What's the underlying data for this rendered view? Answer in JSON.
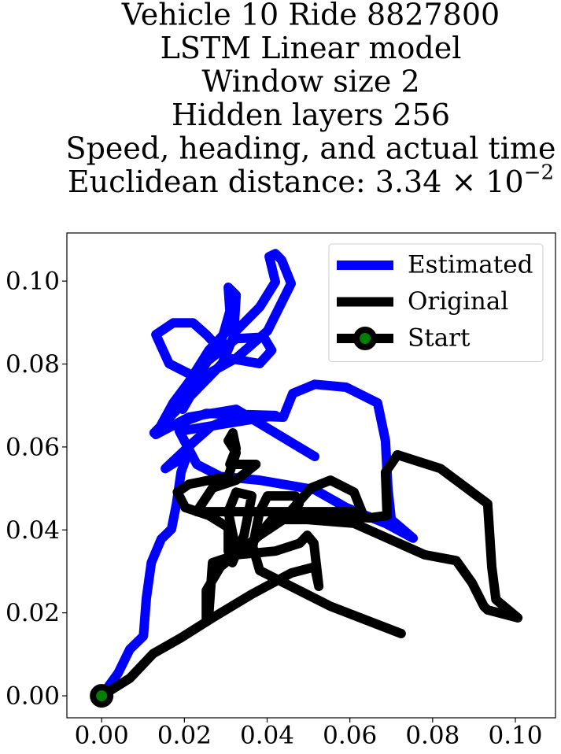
{
  "chart_data": {
    "type": "line",
    "title": [
      "Vehicle 10 Ride 8827800",
      "LSTM Linear model",
      "Window size 2",
      "Hidden layers 256",
      "Speed, heading, and actual time",
      "Euclidean distance: 3.34 × 10"
    ],
    "title_superscript": "−2",
    "xlim": [
      -0.0084,
      0.1097
    ],
    "ylim": [
      -0.0053,
      0.1116
    ],
    "xticks": [
      {
        "value": 0,
        "label": "0.00"
      },
      0.02,
      0.04,
      0.06,
      0.08,
      {
        "value": 0.1,
        "label": "0.10"
      }
    ],
    "yticks": [
      {
        "value": 0,
        "label": "0.00"
      },
      0.02,
      0.04,
      0.06,
      0.08,
      {
        "value": 0.1,
        "label": "0.10"
      }
    ],
    "legend": "upper right",
    "series": [
      {
        "name": "Estimated",
        "color": "#0000ff",
        "x": [
          0,
          0.004,
          0.0068,
          0.0101,
          0.0108,
          0.012,
          0.0144,
          0.0169,
          0.0181,
          0.0192,
          0.0207,
          0.0154,
          0.0221,
          0.0264,
          0.0325,
          0.0439,
          0.0462,
          0.0515,
          0.0591,
          0.0667,
          0.0686,
          0.0692,
          0.07,
          0.0753,
          0.0686,
          0.0591,
          0.0515,
          0.0382,
          0.0287,
          0.023,
          0.0188,
          0.042,
          0.0253,
          0.0127,
          0.0211,
          0.0291,
          0.0325,
          0.0382,
          0.042,
          0.0405,
          0.042,
          0.0435,
          0.0458,
          0.0401,
          0.0325,
          0.024,
          0.0196,
          0.0253,
          0.0325,
          0.0392,
          0.0411,
          0.0382,
          0.0306,
          0.0253,
          0.0221,
          0.0173,
          0.0131,
          0.0163,
          0.023,
          0.0291,
          0.031,
          0.0306,
          0.0325,
          0.0321,
          0.0259,
          0.0211,
          0.0173,
          0.0131,
          0.0211,
          0.0325,
          0.0515
        ],
        "y": [
          0,
          0.0055,
          0.0112,
          0.0144,
          0.0235,
          0.0321,
          0.0378,
          0.0402,
          0.0463,
          0.0539,
          0.0581,
          0.0548,
          0.0611,
          0.0649,
          0.0676,
          0.0672,
          0.0729,
          0.0751,
          0.0744,
          0.0706,
          0.0615,
          0.0501,
          0.0425,
          0.038,
          0.0416,
          0.0454,
          0.0497,
          0.052,
          0.0529,
          0.0558,
          0.0638,
          0.0676,
          0.0681,
          0.0634,
          0.0719,
          0.0801,
          0.088,
          0.0937,
          0.0998,
          0.1059,
          0.1066,
          0.1051,
          0.0994,
          0.088,
          0.0814,
          0.0767,
          0.0691,
          0.0805,
          0.0861,
          0.0865,
          0.0833,
          0.0801,
          0.0814,
          0.0871,
          0.0899,
          0.0899,
          0.0871,
          0.0801,
          0.0767,
          0.0861,
          0.0928,
          0.0985,
          0.0966,
          0.0899,
          0.0833,
          0.0757,
          0.0706,
          0.063,
          0.0672,
          0.0691,
          0.0577
        ]
      },
      {
        "name": "Original",
        "color": "#000000",
        "x": [
          0,
          0.0068,
          0.0125,
          0.0192,
          0.0268,
          0.0363,
          0.0458,
          0.0515,
          0.0525,
          0.0513,
          0.0497,
          0.0479,
          0.042,
          0.0325,
          0.0268,
          0.0259,
          0.0253,
          0.0253,
          0.0287,
          0.0382,
          0.0439,
          0.0477,
          0.0468,
          0.0401,
          0.0382,
          0.0363,
          0.0325,
          0.0306,
          0.0325,
          0.0363,
          0.0344,
          0.0316,
          0.0306,
          0.0306,
          0.0259,
          0.0202,
          0.0183,
          0.0211,
          0.0306,
          0.0316,
          0.0325,
          0.0306,
          0.0317,
          0.0325,
          0.031,
          0.0325,
          0.0373,
          0.0325,
          0.0268,
          0.023,
          0.0325,
          0.0515,
          0.0629,
          0.061,
          0.0553,
          0.0506,
          0.0439,
          0.0497,
          0.061,
          0.0781,
          0.0857,
          0.0895,
          0.0924,
          0.0933,
          0.1006,
          0.0953,
          0.0943,
          0.0933,
          0.0819,
          0.0715,
          0.0686,
          0.069,
          0.0648,
          0.0515,
          0.042,
          0.0363,
          0.0382,
          0.0553,
          0.0724
        ],
        "y": [
          0,
          0.0042,
          0.0102,
          0.014,
          0.0188,
          0.0245,
          0.0296,
          0.0311,
          0.0264,
          0.0368,
          0.0387,
          0.0368,
          0.0349,
          0.034,
          0.0321,
          0.0197,
          0.0188,
          0.0254,
          0.0311,
          0.0387,
          0.0425,
          0.0463,
          0.0482,
          0.0482,
          0.0444,
          0.0349,
          0.0349,
          0.0444,
          0.0491,
          0.0482,
          0.0387,
          0.0321,
          0.0349,
          0.0406,
          0.0435,
          0.0454,
          0.0491,
          0.051,
          0.0529,
          0.0558,
          0.0586,
          0.0615,
          0.0634,
          0.0596,
          0.0558,
          0.0558,
          0.0558,
          0.052,
          0.0501,
          0.0444,
          0.0444,
          0.0444,
          0.0444,
          0.0491,
          0.052,
          0.0501,
          0.0425,
          0.0425,
          0.0416,
          0.034,
          0.0326,
          0.0273,
          0.0216,
          0.0207,
          0.0188,
          0.0232,
          0.0311,
          0.0463,
          0.0548,
          0.0581,
          0.0539,
          0.0435,
          0.0429,
          0.0435,
          0.0435,
          0.0368,
          0.0302,
          0.0216,
          0.015
        ]
      }
    ],
    "start": {
      "name": "Start",
      "x": 0,
      "y": 0,
      "color": "#008000",
      "edgecolor": "#000000"
    }
  }
}
